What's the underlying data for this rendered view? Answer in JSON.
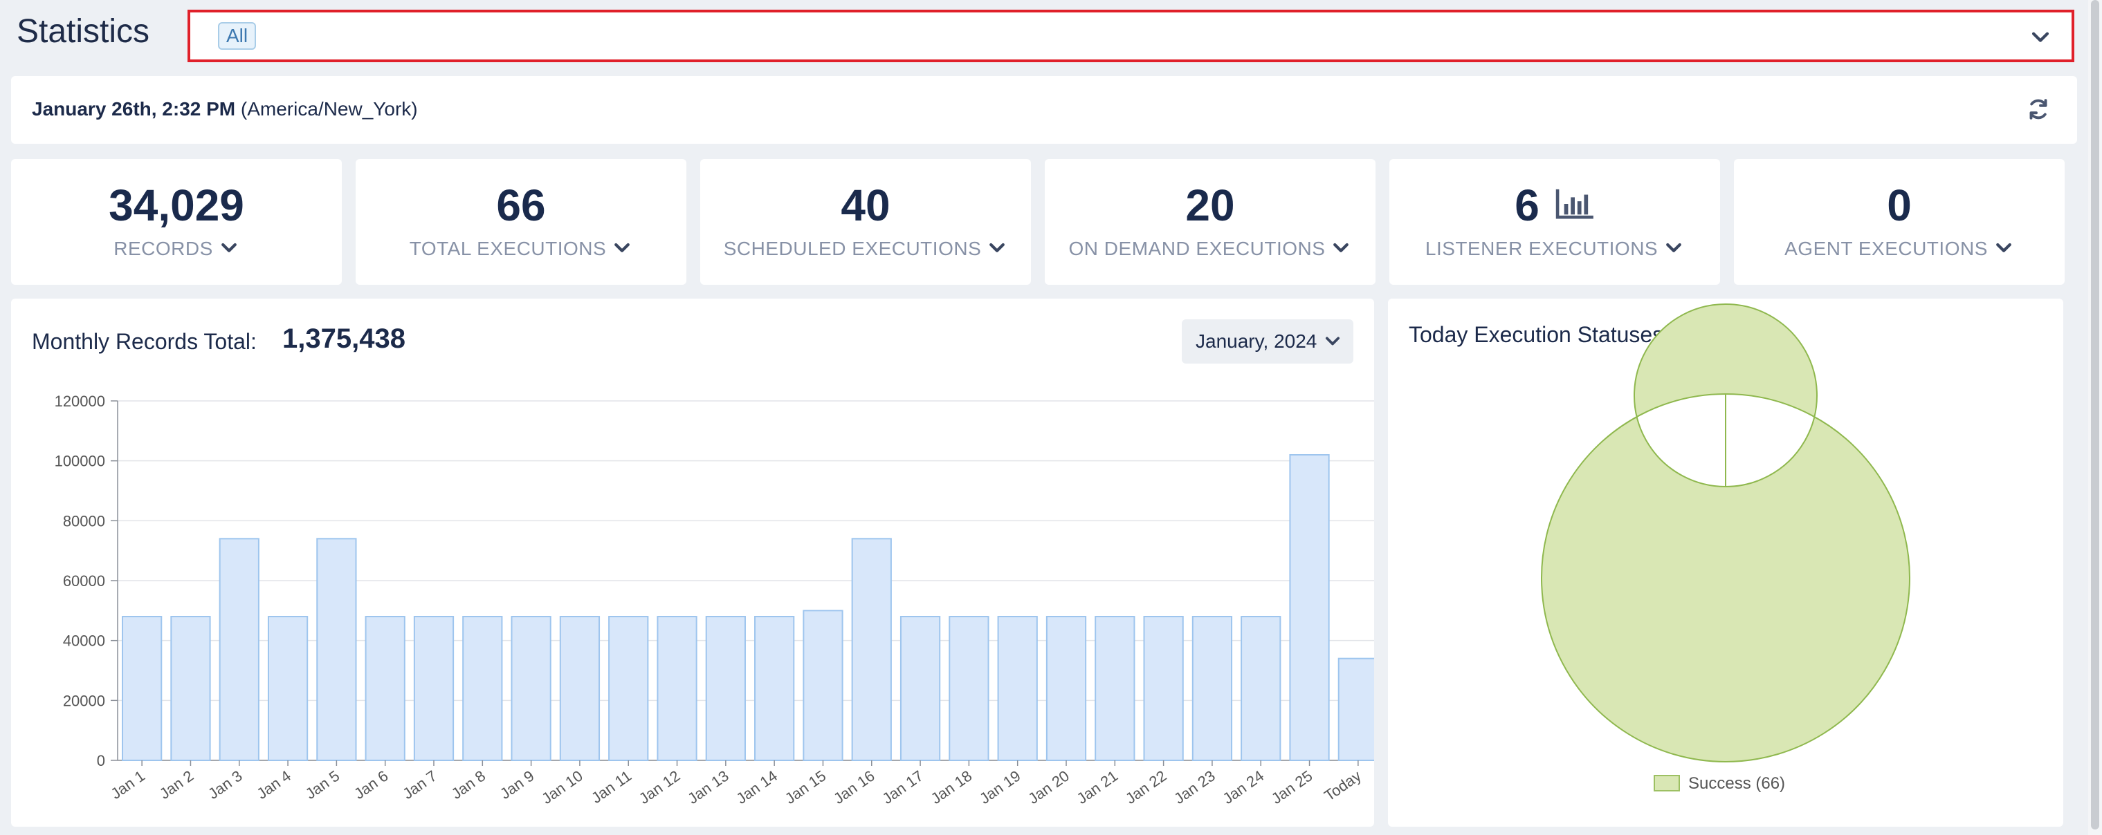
{
  "page": {
    "title": "Statistics"
  },
  "filter": {
    "selected_chip": "All",
    "chevron_icon": "chevron-down-icon"
  },
  "datebar": {
    "date_bold": "January 26th, 2:32 PM",
    "timezone": "(America/New_York)",
    "refresh_icon": "refresh-icon"
  },
  "stats": [
    {
      "value": "34,029",
      "label": "RECORDS"
    },
    {
      "value": "66",
      "label": "TOTAL EXECUTIONS"
    },
    {
      "value": "40",
      "label": "SCHEDULED EXECUTIONS"
    },
    {
      "value": "20",
      "label": "ON DEMAND EXECUTIONS"
    },
    {
      "value": "6",
      "label": "LISTENER EXECUTIONS",
      "icon": "bar-chart-icon"
    },
    {
      "value": "0",
      "label": "AGENT EXECUTIONS"
    }
  ],
  "monthly": {
    "title": "Monthly Records Total:",
    "total": "1,375,438",
    "month_select": "January, 2024"
  },
  "today": {
    "title": "Today Execution Statuses",
    "legend": "Success (66)"
  },
  "colors": {
    "bar_fill": "#d8e7fa",
    "bar_stroke": "#9ec5ee",
    "donut_fill": "#d9e7b4",
    "donut_stroke": "#8fb84e",
    "highlight_border": "#e0202a"
  },
  "chart_data": [
    {
      "type": "bar",
      "title": "",
      "xlabel": "",
      "ylabel": "",
      "ylim": [
        0,
        120000
      ],
      "yticks": [
        0,
        20000,
        40000,
        60000,
        80000,
        100000,
        120000
      ],
      "grid": true,
      "categories": [
        "Jan 1",
        "Jan 2",
        "Jan 3",
        "Jan 4",
        "Jan 5",
        "Jan 6",
        "Jan 7",
        "Jan 8",
        "Jan 9",
        "Jan 10",
        "Jan 11",
        "Jan 12",
        "Jan 13",
        "Jan 14",
        "Jan 15",
        "Jan 16",
        "Jan 17",
        "Jan 18",
        "Jan 19",
        "Jan 20",
        "Jan 21",
        "Jan 22",
        "Jan 23",
        "Jan 24",
        "Jan 25",
        "Today"
      ],
      "values": [
        48000,
        48000,
        74000,
        48000,
        74000,
        48000,
        48000,
        48000,
        48000,
        48000,
        48000,
        48000,
        48000,
        48000,
        50000,
        74000,
        48000,
        48000,
        48000,
        48000,
        48000,
        48000,
        48000,
        48000,
        102000,
        34000
      ]
    },
    {
      "type": "pie",
      "variant": "donut",
      "categories": [
        "Success"
      ],
      "values": [
        66
      ],
      "legend_position": "bottom"
    }
  ]
}
